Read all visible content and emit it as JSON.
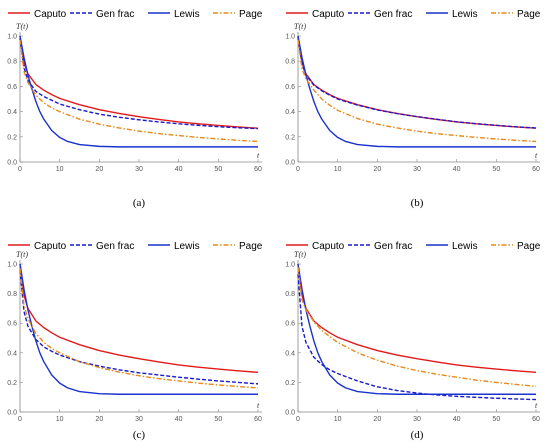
{
  "legend": [
    {
      "label": "Caputo",
      "color": "#e31a1c",
      "dash": "solid"
    },
    {
      "label": "Gen frac",
      "color": "#1a1acc",
      "dash": "dashed"
    },
    {
      "label": "Lewis",
      "color": "#1a33cc",
      "dash": "solid"
    },
    {
      "label": "Page",
      "color": "#e8891a",
      "dash": "dashdot"
    }
  ],
  "chart_data": [
    {
      "type": "line",
      "caption": "(a)",
      "ylabel": "T(t)",
      "xlabel": "t",
      "xlim": [
        0,
        60
      ],
      "ylim": [
        0,
        1
      ],
      "xticks": [
        0,
        10,
        20,
        30,
        40,
        50,
        60
      ],
      "yticks": [
        0,
        0.2,
        0.4,
        0.6,
        0.8,
        1.0
      ],
      "yticklabels": [
        "0.0",
        "0.2",
        "0.4",
        "0.6",
        "0.8",
        "1.0"
      ],
      "series": [
        {
          "name": "Caputo",
          "x": [
            0,
            1,
            2,
            4,
            6,
            8,
            10,
            15,
            20,
            25,
            30,
            35,
            40,
            45,
            50,
            55,
            60
          ],
          "y": [
            1.0,
            0.79,
            0.7,
            0.615,
            0.57,
            0.535,
            0.505,
            0.455,
            0.415,
            0.385,
            0.36,
            0.338,
            0.318,
            0.303,
            0.29,
            0.278,
            0.268
          ]
        },
        {
          "name": "Gen frac",
          "x": [
            0,
            1,
            2,
            4,
            6,
            8,
            10,
            15,
            20,
            25,
            30,
            35,
            40,
            45,
            50,
            55,
            60
          ],
          "y": [
            0.98,
            0.75,
            0.65,
            0.56,
            0.52,
            0.49,
            0.46,
            0.415,
            0.38,
            0.355,
            0.335,
            0.318,
            0.303,
            0.291,
            0.28,
            0.272,
            0.265
          ]
        },
        {
          "name": "Lewis",
          "x": [
            0,
            1,
            2,
            3,
            4,
            5,
            6,
            8,
            10,
            12,
            15,
            20,
            25,
            30,
            40,
            50,
            60
          ],
          "y": [
            1.0,
            0.83,
            0.69,
            0.58,
            0.48,
            0.4,
            0.34,
            0.25,
            0.195,
            0.163,
            0.138,
            0.124,
            0.12,
            0.12,
            0.12,
            0.12,
            0.12
          ]
        },
        {
          "name": "Page",
          "x": [
            0,
            1,
            2,
            4,
            6,
            8,
            10,
            15,
            20,
            25,
            30,
            35,
            40,
            45,
            50,
            55,
            60
          ],
          "y": [
            0.97,
            0.72,
            0.63,
            0.53,
            0.47,
            0.43,
            0.4,
            0.34,
            0.3,
            0.27,
            0.245,
            0.225,
            0.21,
            0.195,
            0.183,
            0.172,
            0.163
          ]
        }
      ]
    },
    {
      "type": "line",
      "caption": "(b)",
      "ylabel": "T(t)",
      "xlabel": "t",
      "xlim": [
        0,
        60
      ],
      "ylim": [
        0,
        1
      ],
      "xticks": [
        0,
        10,
        20,
        30,
        40,
        50,
        60
      ],
      "yticks": [
        0,
        0.2,
        0.4,
        0.6,
        0.8,
        1.0
      ],
      "yticklabels": [
        "0.0",
        "0.2",
        "0.4",
        "0.6",
        "0.8",
        "1.0"
      ],
      "series": [
        {
          "name": "Caputo",
          "x": [
            0,
            1,
            2,
            4,
            6,
            8,
            10,
            15,
            20,
            25,
            30,
            35,
            40,
            45,
            50,
            55,
            60
          ],
          "y": [
            1.0,
            0.79,
            0.7,
            0.615,
            0.57,
            0.535,
            0.505,
            0.455,
            0.415,
            0.385,
            0.36,
            0.338,
            0.318,
            0.303,
            0.29,
            0.278,
            0.268
          ]
        },
        {
          "name": "Gen frac",
          "x": [
            0,
            1,
            2,
            4,
            6,
            8,
            10,
            15,
            20,
            25,
            30,
            35,
            40,
            45,
            50,
            55,
            60
          ],
          "y": [
            0.99,
            0.78,
            0.69,
            0.61,
            0.565,
            0.53,
            0.5,
            0.452,
            0.413,
            0.384,
            0.36,
            0.339,
            0.319,
            0.304,
            0.291,
            0.279,
            0.27
          ]
        },
        {
          "name": "Lewis",
          "x": [
            0,
            1,
            2,
            3,
            4,
            5,
            6,
            8,
            10,
            12,
            15,
            20,
            25,
            30,
            40,
            50,
            60
          ],
          "y": [
            1.0,
            0.83,
            0.69,
            0.58,
            0.48,
            0.4,
            0.34,
            0.25,
            0.195,
            0.163,
            0.138,
            0.124,
            0.12,
            0.12,
            0.12,
            0.12,
            0.12
          ]
        },
        {
          "name": "Page",
          "x": [
            0,
            1,
            2,
            4,
            6,
            8,
            10,
            15,
            20,
            25,
            30,
            35,
            40,
            45,
            50,
            55,
            60
          ],
          "y": [
            0.97,
            0.74,
            0.66,
            0.57,
            0.5,
            0.45,
            0.41,
            0.345,
            0.3,
            0.27,
            0.245,
            0.225,
            0.21,
            0.195,
            0.183,
            0.172,
            0.163
          ]
        }
      ]
    },
    {
      "type": "line",
      "caption": "(c)",
      "ylabel": "T(t)",
      "xlabel": "t",
      "xlim": [
        0,
        60
      ],
      "ylim": [
        0,
        1
      ],
      "xticks": [
        0,
        10,
        20,
        30,
        40,
        50,
        60
      ],
      "yticks": [
        0,
        0.2,
        0.4,
        0.6,
        0.8,
        1.0
      ],
      "yticklabels": [
        "0.0",
        "0.2",
        "0.4",
        "0.6",
        "0.8",
        "1.0"
      ],
      "series": [
        {
          "name": "Caputo",
          "x": [
            0,
            1,
            2,
            4,
            6,
            8,
            10,
            15,
            20,
            25,
            30,
            35,
            40,
            45,
            50,
            55,
            60
          ],
          "y": [
            1.0,
            0.79,
            0.7,
            0.615,
            0.57,
            0.535,
            0.505,
            0.455,
            0.415,
            0.385,
            0.36,
            0.338,
            0.318,
            0.303,
            0.29,
            0.278,
            0.268
          ]
        },
        {
          "name": "Gen frac",
          "x": [
            0,
            1,
            2,
            4,
            6,
            8,
            10,
            15,
            20,
            25,
            30,
            35,
            40,
            45,
            50,
            55,
            60
          ],
          "y": [
            0.96,
            0.68,
            0.58,
            0.49,
            0.44,
            0.41,
            0.385,
            0.34,
            0.31,
            0.285,
            0.265,
            0.25,
            0.235,
            0.222,
            0.21,
            0.2,
            0.19
          ]
        },
        {
          "name": "Lewis",
          "x": [
            0,
            1,
            2,
            3,
            4,
            5,
            6,
            8,
            10,
            12,
            15,
            20,
            25,
            30,
            40,
            50,
            60
          ],
          "y": [
            1.0,
            0.83,
            0.69,
            0.58,
            0.48,
            0.4,
            0.34,
            0.25,
            0.195,
            0.163,
            0.138,
            0.124,
            0.12,
            0.12,
            0.12,
            0.12,
            0.12
          ]
        },
        {
          "name": "Page",
          "x": [
            0,
            1,
            2,
            4,
            6,
            8,
            10,
            15,
            20,
            25,
            30,
            35,
            40,
            45,
            50,
            55,
            60
          ],
          "y": [
            0.97,
            0.72,
            0.63,
            0.53,
            0.47,
            0.43,
            0.4,
            0.34,
            0.3,
            0.27,
            0.245,
            0.225,
            0.21,
            0.195,
            0.183,
            0.172,
            0.163
          ]
        }
      ]
    },
    {
      "type": "line",
      "caption": "(d)",
      "ylabel": "T(t)",
      "xlabel": "t",
      "xlim": [
        0,
        60
      ],
      "ylim": [
        0,
        1
      ],
      "xticks": [
        0,
        10,
        20,
        30,
        40,
        50,
        60
      ],
      "yticks": [
        0,
        0.2,
        0.4,
        0.6,
        0.8,
        1.0
      ],
      "yticklabels": [
        "0.0",
        "0.2",
        "0.4",
        "0.6",
        "0.8",
        "1.0"
      ],
      "series": [
        {
          "name": "Caputo",
          "x": [
            0,
            1,
            2,
            4,
            6,
            8,
            10,
            15,
            20,
            25,
            30,
            35,
            40,
            45,
            50,
            55,
            60
          ],
          "y": [
            1.0,
            0.79,
            0.7,
            0.615,
            0.57,
            0.535,
            0.505,
            0.455,
            0.415,
            0.385,
            0.36,
            0.338,
            0.318,
            0.303,
            0.29,
            0.278,
            0.268
          ]
        },
        {
          "name": "Gen frac",
          "x": [
            0,
            1,
            2,
            4,
            6,
            8,
            10,
            12,
            15,
            20,
            25,
            30,
            35,
            40,
            45,
            50,
            55,
            60
          ],
          "y": [
            0.93,
            0.58,
            0.47,
            0.37,
            0.32,
            0.285,
            0.26,
            0.24,
            0.21,
            0.17,
            0.145,
            0.128,
            0.115,
            0.106,
            0.099,
            0.093,
            0.088,
            0.084
          ]
        },
        {
          "name": "Lewis",
          "x": [
            0,
            1,
            2,
            3,
            4,
            5,
            6,
            8,
            10,
            12,
            15,
            20,
            25,
            30,
            40,
            50,
            60
          ],
          "y": [
            1.0,
            0.83,
            0.69,
            0.58,
            0.48,
            0.4,
            0.34,
            0.25,
            0.195,
            0.163,
            0.138,
            0.124,
            0.12,
            0.12,
            0.12,
            0.12,
            0.12
          ]
        },
        {
          "name": "Page",
          "x": [
            0,
            1,
            2,
            4,
            6,
            8,
            10,
            15,
            20,
            25,
            30,
            35,
            40,
            45,
            50,
            55,
            60
          ],
          "y": [
            0.98,
            0.76,
            0.69,
            0.61,
            0.55,
            0.51,
            0.47,
            0.4,
            0.35,
            0.31,
            0.28,
            0.255,
            0.235,
            0.215,
            0.2,
            0.186,
            0.174
          ]
        }
      ]
    }
  ]
}
